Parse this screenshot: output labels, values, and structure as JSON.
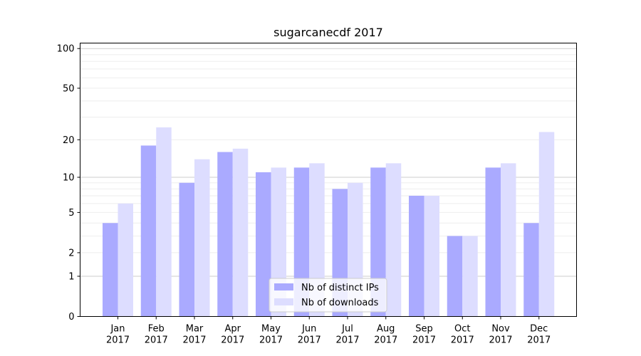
{
  "chart_data": {
    "type": "bar",
    "title": "sugarcanecdf 2017",
    "xlabel": "",
    "ylabel": "",
    "categories": [
      [
        "Jan",
        "2017"
      ],
      [
        "Feb",
        "2017"
      ],
      [
        "Mar",
        "2017"
      ],
      [
        "Apr",
        "2017"
      ],
      [
        "May",
        "2017"
      ],
      [
        "Jun",
        "2017"
      ],
      [
        "Jul",
        "2017"
      ],
      [
        "Aug",
        "2017"
      ],
      [
        "Sep",
        "2017"
      ],
      [
        "Oct",
        "2017"
      ],
      [
        "Nov",
        "2017"
      ],
      [
        "Dec",
        "2017"
      ]
    ],
    "series": [
      {
        "name": "Nb of distinct IPs",
        "color": "#aaaaff",
        "values": [
          4,
          18,
          9,
          16,
          11,
          12,
          8,
          12,
          7,
          3,
          12,
          4
        ]
      },
      {
        "name": "Nb of downloads",
        "color": "#ddddff",
        "values": [
          6,
          25,
          14,
          17,
          12,
          13,
          9,
          13,
          7,
          3,
          13,
          23
        ]
      }
    ],
    "yscale": "log(1+y)",
    "ylim": [
      0,
      110
    ],
    "yticks": [
      0,
      1,
      2,
      5,
      10,
      20,
      50,
      100
    ],
    "major_gridlines": [
      1,
      10,
      100
    ],
    "minor_gridlines": [
      2,
      3,
      4,
      5,
      6,
      7,
      8,
      9,
      20,
      30,
      40,
      50,
      60,
      70,
      80,
      90
    ],
    "legend_position": "bottom-center"
  }
}
